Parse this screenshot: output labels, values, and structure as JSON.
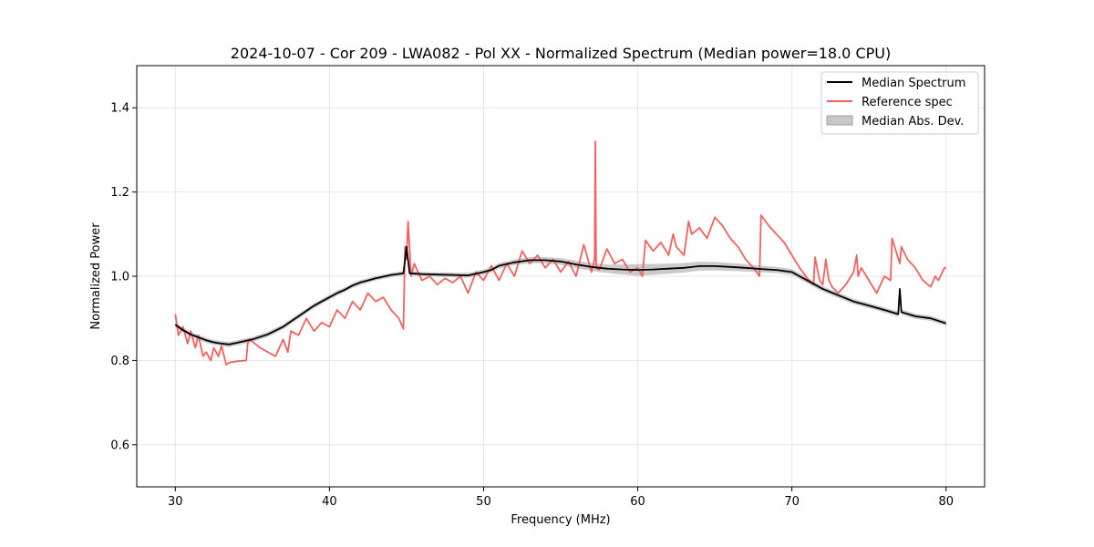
{
  "chart_data": {
    "type": "line",
    "title": "2024-10-07 - Cor 209 - LWA082 - Pol XX - Normalized Spectrum (Median power=18.0 CPU)",
    "xlabel": "Frequency (MHz)",
    "ylabel": "Normalized Power",
    "xlim": [
      27.5,
      82.5
    ],
    "ylim": [
      0.5,
      1.5
    ],
    "xticks": [
      30,
      40,
      50,
      60,
      70,
      80
    ],
    "yticks": [
      0.6,
      0.8,
      1.0,
      1.2,
      1.4
    ],
    "xtick_labels": [
      "30",
      "40",
      "50",
      "60",
      "70",
      "80"
    ],
    "ytick_labels": [
      "0.6",
      "0.8",
      "1.0",
      "1.2",
      "1.4"
    ],
    "grid": true,
    "legend_position": "top-right",
    "legend": [
      {
        "label": "Median Spectrum",
        "kind": "line",
        "color": "#000000"
      },
      {
        "label": "Reference spec",
        "kind": "line",
        "color": "#f26060"
      },
      {
        "label": "Median Abs. Dev.",
        "kind": "patch",
        "color": "#bdbdbd"
      }
    ],
    "series": [
      {
        "name": "Median Spectrum",
        "color": "#000000",
        "x": [
          30.0,
          30.5,
          31.0,
          31.5,
          32.0,
          32.5,
          33.0,
          33.5,
          34.0,
          35.0,
          36.0,
          37.0,
          38.0,
          39.0,
          40.0,
          40.5,
          41.0,
          41.5,
          42.0,
          43.0,
          44.0,
          44.8,
          45.0,
          45.2,
          46.0,
          47.0,
          48.0,
          49.0,
          50.0,
          50.5,
          51.0,
          52.0,
          53.0,
          54.0,
          55.0,
          56.0,
          57.0,
          58.0,
          59.0,
          60.0,
          61.0,
          62.0,
          63.0,
          64.0,
          65.0,
          66.0,
          67.0,
          68.0,
          69.0,
          70.0,
          70.5,
          71.0,
          72.0,
          73.0,
          74.0,
          75.0,
          76.0,
          76.9,
          77.0,
          77.1,
          78.0,
          79.0,
          80.0
        ],
        "y": [
          0.885,
          0.872,
          0.862,
          0.855,
          0.848,
          0.843,
          0.84,
          0.838,
          0.842,
          0.85,
          0.862,
          0.88,
          0.905,
          0.93,
          0.95,
          0.96,
          0.968,
          0.978,
          0.985,
          0.995,
          1.003,
          1.007,
          1.07,
          1.007,
          1.005,
          1.004,
          1.003,
          1.002,
          1.01,
          1.015,
          1.025,
          1.033,
          1.038,
          1.038,
          1.035,
          1.028,
          1.022,
          1.018,
          1.016,
          1.015,
          1.016,
          1.018,
          1.02,
          1.024,
          1.024,
          1.022,
          1.02,
          1.017,
          1.015,
          1.01,
          1.0,
          0.99,
          0.97,
          0.955,
          0.94,
          0.93,
          0.92,
          0.91,
          0.97,
          0.915,
          0.905,
          0.9,
          0.888
        ]
      },
      {
        "name": "Reference spec",
        "color": "#f26060",
        "x": [
          30.0,
          30.2,
          30.5,
          30.8,
          31.0,
          31.3,
          31.5,
          31.8,
          32.0,
          32.3,
          32.5,
          32.8,
          33.0,
          33.3,
          33.5,
          34.0,
          34.6,
          34.7,
          34.8,
          35.0,
          35.5,
          36.0,
          36.5,
          37.0,
          37.3,
          37.5,
          38.0,
          38.5,
          39.0,
          39.5,
          40.0,
          40.5,
          41.0,
          41.5,
          42.0,
          42.5,
          43.0,
          43.5,
          44.0,
          44.5,
          44.8,
          44.9,
          45.0,
          45.1,
          45.3,
          45.5,
          46.0,
          46.5,
          47.0,
          47.5,
          48.0,
          48.5,
          49.0,
          49.5,
          50.0,
          50.5,
          51.0,
          51.5,
          52.0,
          52.5,
          53.0,
          53.5,
          54.0,
          54.5,
          55.0,
          55.5,
          56.0,
          56.5,
          57.0,
          57.2,
          57.25,
          57.3,
          57.5,
          58.0,
          58.5,
          59.0,
          59.5,
          60.0,
          60.3,
          60.5,
          61.0,
          61.5,
          62.0,
          62.3,
          62.5,
          63.0,
          63.3,
          63.5,
          64.0,
          64.5,
          65.0,
          65.5,
          66.0,
          66.5,
          67.0,
          67.5,
          67.9,
          68.0,
          68.5,
          69.0,
          69.5,
          70.0,
          70.5,
          71.0,
          71.4,
          71.5,
          71.8,
          72.0,
          72.2,
          72.4,
          72.6,
          73.0,
          73.5,
          74.0,
          74.2,
          74.3,
          74.5,
          75.0,
          75.5,
          76.0,
          76.4,
          76.5,
          77.0,
          77.1,
          77.5,
          78.0,
          78.5,
          79.0,
          79.3,
          79.5,
          79.9,
          80.0
        ],
        "y": [
          0.91,
          0.86,
          0.88,
          0.84,
          0.87,
          0.83,
          0.86,
          0.81,
          0.82,
          0.8,
          0.83,
          0.81,
          0.835,
          0.79,
          0.795,
          0.798,
          0.8,
          0.84,
          0.85,
          0.845,
          0.83,
          0.82,
          0.81,
          0.85,
          0.82,
          0.87,
          0.86,
          0.9,
          0.87,
          0.89,
          0.88,
          0.92,
          0.9,
          0.94,
          0.92,
          0.96,
          0.94,
          0.95,
          0.92,
          0.9,
          0.875,
          1.07,
          1.04,
          1.13,
          1.0,
          1.03,
          0.99,
          1.0,
          0.98,
          0.995,
          0.985,
          1.0,
          0.96,
          1.01,
          0.99,
          1.025,
          0.99,
          1.03,
          1.0,
          1.06,
          1.03,
          1.05,
          1.02,
          1.04,
          1.01,
          1.035,
          1.0,
          1.075,
          1.01,
          1.04,
          1.32,
          1.02,
          1.015,
          1.065,
          1.03,
          1.04,
          1.01,
          1.02,
          1.0,
          1.085,
          1.06,
          1.08,
          1.05,
          1.1,
          1.07,
          1.05,
          1.13,
          1.1,
          1.115,
          1.09,
          1.14,
          1.12,
          1.09,
          1.07,
          1.04,
          1.02,
          1.0,
          1.145,
          1.12,
          1.1,
          1.08,
          1.05,
          1.02,
          0.995,
          0.98,
          1.045,
          0.99,
          0.98,
          1.04,
          0.99,
          0.975,
          0.96,
          0.98,
          1.01,
          1.05,
          1.0,
          1.02,
          0.99,
          0.96,
          1.0,
          0.99,
          1.09,
          1.03,
          1.07,
          1.04,
          1.02,
          0.99,
          0.975,
          1.0,
          0.99,
          1.02,
          1.02
        ]
      }
    ],
    "mad_band": {
      "name": "Median Abs. Dev.",
      "color": "#bdbdbd",
      "x": [
        30.0,
        35.0,
        40.0,
        45.0,
        50.0,
        55.0,
        58.0,
        60.0,
        62.0,
        65.0,
        68.0,
        70.0,
        75.0,
        80.0
      ],
      "halfwidth": [
        0.006,
        0.006,
        0.006,
        0.005,
        0.006,
        0.008,
        0.01,
        0.014,
        0.012,
        0.01,
        0.008,
        0.007,
        0.006,
        0.006
      ]
    }
  }
}
